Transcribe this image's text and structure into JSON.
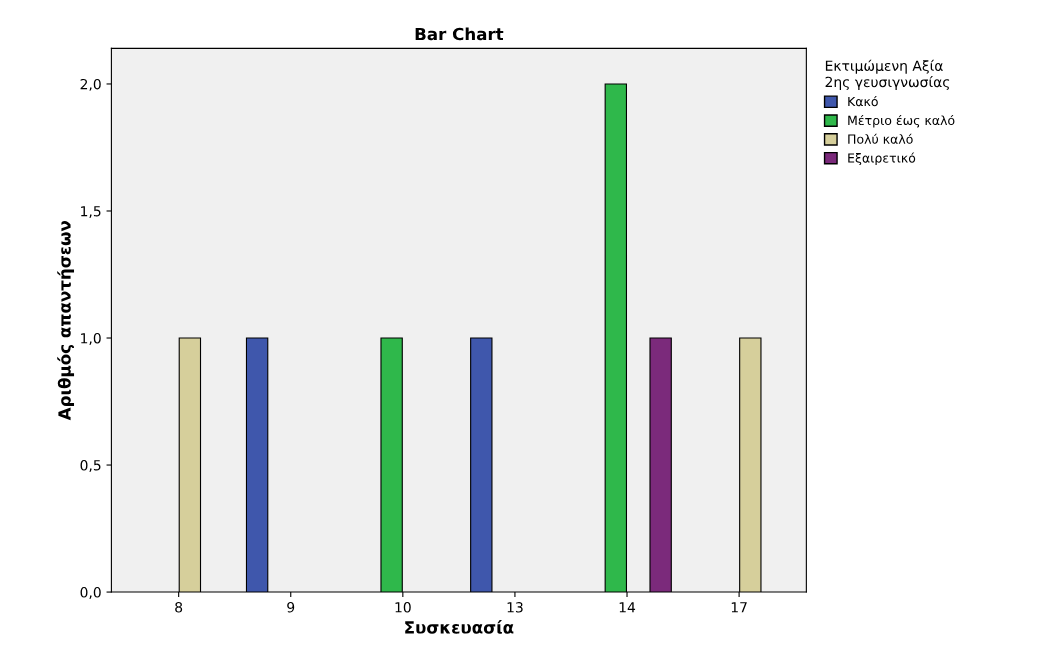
{
  "chart_data": {
    "type": "bar",
    "title": "Bar Chart",
    "xlabel": "Συσκευασία",
    "ylabel": "Αριθμός απαντήσεων",
    "legend_title": "Εκτιμώμενη Αξία\n2ης γευσιγνωσίας",
    "categories": [
      "8",
      "9",
      "10",
      "13",
      "14",
      "17"
    ],
    "series": [
      {
        "name": "Κακό",
        "color": "#3f57ac",
        "values": [
          null,
          1,
          null,
          1,
          null,
          null
        ]
      },
      {
        "name": "Μέτριο έως καλό",
        "color": "#2fb84b",
        "values": [
          null,
          null,
          1,
          null,
          2,
          null
        ]
      },
      {
        "name": "Πολύ καλό",
        "color": "#d6cf9b",
        "values": [
          1,
          null,
          null,
          null,
          null,
          1
        ]
      },
      {
        "name": "Εξαιρετικό",
        "color": "#7b2a7b",
        "values": [
          null,
          null,
          null,
          null,
          1,
          null
        ]
      }
    ],
    "ylim": [
      0,
      2.14
    ],
    "yticks": [
      {
        "value": 0,
        "label": "0,0"
      },
      {
        "value": 0.5,
        "label": "0,5"
      },
      {
        "value": 1,
        "label": "1,0"
      },
      {
        "value": 1.5,
        "label": "1,5"
      },
      {
        "value": 2,
        "label": "2,0"
      }
    ],
    "grid": false,
    "legend": "top right"
  }
}
